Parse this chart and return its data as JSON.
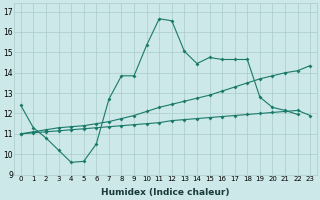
{
  "xlabel": "Humidex (Indice chaleur)",
  "bg_color": "#cce8e8",
  "grid_color": "#aacccc",
  "line_color": "#1a7a6a",
  "x_ticks": [
    0,
    1,
    2,
    3,
    4,
    5,
    6,
    7,
    8,
    9,
    10,
    11,
    12,
    13,
    14,
    15,
    16,
    17,
    18,
    19,
    20,
    21,
    22,
    23
  ],
  "ylim": [
    9,
    17.4
  ],
  "yticks": [
    9,
    10,
    11,
    12,
    13,
    14,
    15,
    16,
    17
  ],
  "series1_x": [
    0,
    1,
    2,
    3,
    4,
    5,
    6,
    7,
    8,
    9,
    10,
    11,
    12,
    13,
    14,
    15,
    16,
    17,
    18,
    19,
    20,
    21,
    22
  ],
  "series1_y": [
    12.4,
    11.3,
    10.8,
    10.2,
    9.6,
    9.65,
    10.5,
    12.7,
    13.85,
    13.85,
    15.35,
    16.65,
    16.55,
    15.05,
    14.45,
    14.75,
    14.65,
    14.65,
    14.65,
    12.8,
    12.3,
    12.15,
    11.95
  ],
  "series2_x": [
    0,
    1,
    2,
    3,
    4,
    5,
    6,
    7,
    8,
    9,
    10,
    11,
    12,
    13,
    14,
    15,
    16,
    17,
    18,
    19,
    20,
    21,
    22,
    23
  ],
  "series2_y": [
    11.0,
    11.1,
    11.2,
    11.3,
    11.35,
    11.4,
    11.5,
    11.6,
    11.75,
    11.9,
    12.1,
    12.3,
    12.45,
    12.6,
    12.75,
    12.9,
    13.1,
    13.3,
    13.5,
    13.7,
    13.85,
    14.0,
    14.1,
    14.35
  ],
  "series3_x": [
    0,
    1,
    2,
    3,
    4,
    5,
    6,
    7,
    8,
    9,
    10,
    11,
    12,
    13,
    14,
    15,
    16,
    17,
    18,
    19,
    20,
    21,
    22,
    23
  ],
  "series3_y": [
    11.0,
    11.05,
    11.1,
    11.15,
    11.2,
    11.25,
    11.3,
    11.35,
    11.4,
    11.45,
    11.5,
    11.55,
    11.65,
    11.7,
    11.75,
    11.8,
    11.85,
    11.9,
    11.95,
    12.0,
    12.05,
    12.1,
    12.15,
    11.9
  ]
}
